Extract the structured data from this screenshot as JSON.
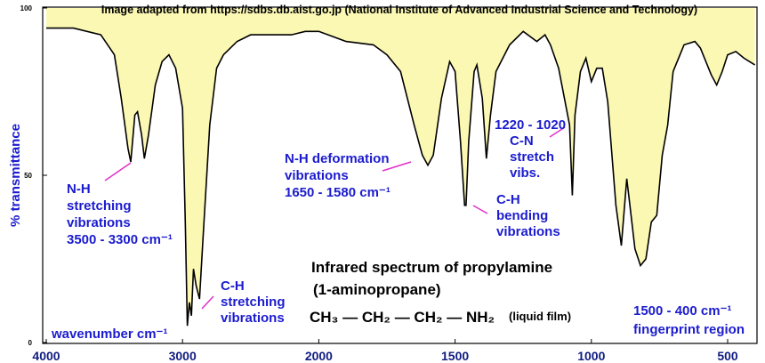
{
  "chart_data": {
    "type": "spectrum",
    "source": "Image adapted from https://sdbs.db.aist.go.jp (National Institute of Advanced Industrial Science and Technology)",
    "title": "Infrared spectrum of propylamine",
    "subtitle": "(1-aminopropane)",
    "formula": "CH₃ — CH₂ — CH₂ — NH₂",
    "sample": "(liquid film)",
    "xlabel": "wavenumber  cm⁻¹",
    "ylabel": "% transmittance",
    "x": [
      4000,
      3800,
      3600,
      3500,
      3450,
      3400,
      3380,
      3350,
      3330,
      3300,
      3280,
      3250,
      3200,
      3150,
      3100,
      3050,
      3000,
      2980,
      2965,
      2950,
      2935,
      2920,
      2900,
      2875,
      2850,
      2800,
      2750,
      2700,
      2600,
      2500,
      2300,
      2200,
      2100,
      2000,
      1900,
      1800,
      1750,
      1700,
      1650,
      1620,
      1600,
      1580,
      1550,
      1520,
      1500,
      1480,
      1465,
      1460,
      1450,
      1430,
      1420,
      1400,
      1385,
      1370,
      1350,
      1300,
      1250,
      1200,
      1170,
      1150,
      1120,
      1080,
      1070,
      1060,
      1040,
      1020,
      1000,
      980,
      960,
      940,
      910,
      890,
      870,
      860,
      840,
      820,
      800,
      780,
      760,
      740,
      720,
      700,
      660,
      620,
      600,
      560,
      540,
      520,
      500,
      470,
      440,
      420,
      400
    ],
    "series": [
      {
        "name": "propylamine",
        "color": "#000000",
        "fill": "#fbf8b4",
        "values": [
          94,
          94,
          92,
          86,
          73,
          58,
          54,
          68,
          69,
          62,
          55,
          62,
          77,
          84,
          86,
          82,
          70,
          36,
          5,
          12,
          8,
          22,
          17,
          13,
          31,
          65,
          82,
          86,
          90,
          92,
          92,
          92,
          93,
          93,
          90,
          89,
          86,
          81,
          65,
          56,
          53,
          56,
          73,
          84,
          81,
          60,
          41,
          41,
          60,
          81,
          83,
          73,
          55,
          68,
          81,
          89,
          93,
          90,
          92,
          89,
          82,
          65,
          44,
          68,
          81,
          85,
          78,
          82,
          82,
          72,
          41,
          29,
          49,
          42,
          28,
          23,
          25,
          36,
          38,
          56,
          65,
          81,
          89,
          90,
          88,
          80,
          77,
          81,
          86,
          87,
          85,
          84,
          83
        ]
      }
    ],
    "xlim": [
      4000,
      400
    ],
    "xticks": [
      4000,
      3000,
      2000,
      1500,
      1000,
      500
    ],
    "ylim": [
      0,
      100
    ],
    "yticks": [
      0,
      50,
      100
    ],
    "annotations": [
      {
        "lines": [
          "N-H",
          "stretching",
          "vibrations",
          "3500 - 3300 cm⁻¹"
        ]
      },
      {
        "lines": [
          "C-H",
          "stretching",
          "vibrations"
        ]
      },
      {
        "lines": [
          "N-H deformation",
          "vibrations",
          "1650 - 1580 cm⁻¹"
        ]
      },
      {
        "lines": [
          "C-H",
          "bending",
          "vibrations"
        ]
      },
      {
        "lines": [
          "1220 - 1020"
        ]
      },
      {
        "lines": [
          "C-N",
          "stretch",
          "vibs."
        ]
      },
      {
        "lines": [
          "1500 - 400 cm⁻¹",
          "fingerprint region"
        ]
      }
    ]
  }
}
